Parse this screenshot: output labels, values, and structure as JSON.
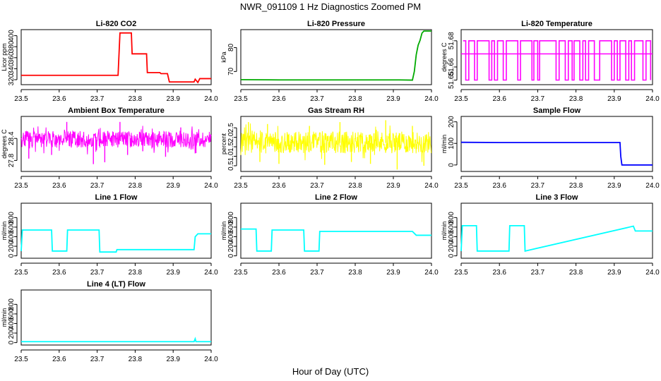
{
  "title": "NWR_091109  1 Hz Diagnostics Zoomed PM",
  "xlabel": "Hour of Day (UTC)",
  "chart_data": [
    {
      "type": "line",
      "title": "Li-820 CO2",
      "ylabel": "Licor ppm",
      "color": "#ff0000",
      "xlim": [
        23.5,
        24.0
      ],
      "xticks": [
        "23.5",
        "23.6",
        "23.7",
        "23.8",
        "23.9",
        "24.0"
      ],
      "ylim": [
        311,
        411
      ],
      "yticks": [
        320,
        340,
        360,
        380,
        400
      ],
      "x": [
        23.5,
        23.6,
        23.7,
        23.705,
        23.74,
        23.748,
        23.755,
        23.76,
        23.79,
        23.792,
        23.83,
        23.832,
        23.865,
        23.868,
        23.885,
        23.89,
        23.93,
        23.955,
        23.958,
        23.965,
        23.97,
        24.0
      ],
      "y": [
        328,
        328,
        328,
        328,
        328,
        328,
        328,
        405,
        405,
        367,
        367,
        333,
        333,
        331,
        331,
        316,
        316,
        316,
        321,
        315,
        322,
        322
      ]
    },
    {
      "type": "line",
      "title": "Li-820 Pressure",
      "ylabel": "kPa",
      "color": "#00aa00",
      "xlim": [
        23.5,
        24.0
      ],
      "xticks": [
        "23.5",
        "23.6",
        "23.7",
        "23.8",
        "23.9",
        "24.0"
      ],
      "ylim": [
        64.5,
        87.5
      ],
      "yticks": [
        70,
        80
      ],
      "x": [
        23.5,
        23.6,
        23.7,
        23.8,
        23.9,
        23.915,
        23.95,
        23.955,
        23.96,
        23.965,
        23.97,
        23.975,
        23.98,
        24.0
      ],
      "y": [
        66.6,
        66.5,
        66.5,
        66.5,
        66.5,
        66.5,
        66.4,
        70,
        77,
        81,
        83,
        86,
        86.9,
        86.9
      ]
    },
    {
      "type": "line",
      "title": "Li-820 Temperature",
      "ylabel": "degrees C",
      "color": "#ff00ff",
      "xlim": [
        23.5,
        24.0
      ],
      "xticks": [
        "23.5",
        "23.6",
        "23.7",
        "23.8",
        "23.9",
        "24.0"
      ],
      "ylim": [
        51.6465,
        51.6885
      ],
      "yticks": [
        "51.65",
        "51.66",
        "51.68"
      ],
      "levels": [
        51.65,
        51.67,
        51.68
      ],
      "x": [
        23.505,
        23.512,
        23.52,
        23.528,
        23.535,
        23.542,
        23.55,
        23.558,
        23.565,
        23.573,
        23.58,
        23.587,
        23.595,
        23.602,
        23.61,
        23.618,
        23.625,
        23.633,
        23.64,
        23.648,
        23.655,
        23.662,
        23.67,
        23.678,
        23.685,
        23.69,
        23.7,
        23.705,
        23.715,
        23.72,
        23.732,
        23.74,
        23.748,
        23.756,
        23.765,
        23.772,
        23.78,
        23.79,
        23.795,
        23.805,
        23.81,
        23.818,
        23.825,
        23.833,
        23.84,
        23.848,
        23.855,
        23.862,
        23.87,
        23.878,
        23.885,
        23.893,
        23.9,
        23.908,
        23.915,
        23.923,
        23.93,
        23.938,
        23.945,
        23.953,
        23.96,
        23.968,
        23.975,
        23.983,
        23.99,
        23.995
      ],
      "y": [
        51.68,
        51.65,
        51.68,
        51.68,
        51.65,
        51.68,
        51.68,
        51.68,
        51.68,
        51.65,
        51.68,
        51.65,
        51.68,
        51.68,
        51.65,
        51.68,
        51.68,
        51.68,
        51.68,
        51.65,
        51.68,
        51.68,
        51.68,
        51.68,
        51.65,
        51.68,
        51.65,
        51.68,
        51.68,
        51.68,
        51.68,
        51.68,
        51.65,
        51.68,
        51.68,
        51.65,
        51.68,
        51.65,
        51.68,
        51.68,
        51.65,
        51.68,
        51.65,
        51.68,
        51.68,
        51.65,
        51.65,
        51.68,
        51.68,
        51.68,
        51.68,
        51.65,
        51.68,
        51.65,
        51.68,
        51.68,
        51.65,
        51.68,
        51.65,
        51.68,
        51.68,
        51.68,
        51.65,
        51.68,
        51.68,
        51.65
      ]
    },
    {
      "type": "line",
      "title": "Ambient Box Temperature",
      "ylabel": "degrees C",
      "color": "#ff00ff",
      "xlim": [
        23.5,
        24.0
      ],
      "xticks": [
        "23.5",
        "23.6",
        "23.7",
        "23.8",
        "23.9",
        "24.0"
      ],
      "ylim": [
        27.5,
        29.0
      ],
      "yticks": [
        "27.8",
        "28.4"
      ],
      "center": 28.35,
      "band": [
        28.15,
        28.6
      ],
      "extremes": [
        [
          23.52,
          27.85
        ],
        [
          23.58,
          27.95
        ],
        [
          23.62,
          28.85
        ],
        [
          23.69,
          27.7
        ],
        [
          23.72,
          27.75
        ],
        [
          23.76,
          28.85
        ],
        [
          23.78,
          27.95
        ],
        [
          23.82,
          28.05
        ],
        [
          23.88,
          27.9
        ],
        [
          23.92,
          28.7
        ],
        [
          23.96,
          28.0
        ]
      ]
    },
    {
      "type": "line",
      "title": "Gas Stream RH",
      "ylabel": "percent",
      "color": "#ffff00",
      "xlim": [
        23.5,
        24.0
      ],
      "xticks": [
        "23.5",
        "23.6",
        "23.7",
        "23.8",
        "23.9",
        "24.0"
      ],
      "ylim": [
        0.2,
        3.1
      ],
      "yticks": [
        "0.5",
        "1.0",
        "1.5",
        "2.0",
        "2.5"
      ],
      "center": 1.7,
      "band": [
        1.15,
        2.3
      ],
      "extremes": [
        [
          23.52,
          2.8
        ],
        [
          23.55,
          0.7
        ],
        [
          23.57,
          2.7
        ],
        [
          23.6,
          0.6
        ],
        [
          23.68,
          2.6
        ],
        [
          23.72,
          0.55
        ],
        [
          23.76,
          2.8
        ],
        [
          23.79,
          0.7
        ],
        [
          23.84,
          0.6
        ],
        [
          23.88,
          2.9
        ],
        [
          23.91,
          0.3
        ],
        [
          23.95,
          2.6
        ],
        [
          23.98,
          0.5
        ]
      ]
    },
    {
      "type": "line",
      "title": "Sample Flow",
      "ylabel": "ml/min",
      "color": "#0000ff",
      "xlim": [
        23.5,
        24.0
      ],
      "xticks": [
        "23.5",
        "23.6",
        "23.7",
        "23.8",
        "23.9",
        "24.0"
      ],
      "ylim": [
        -30,
        225
      ],
      "yticks": [
        0,
        100,
        200
      ],
      "x": [
        23.5,
        23.6,
        23.7,
        23.8,
        23.915,
        23.917,
        23.92,
        24.0
      ],
      "y": [
        105,
        104,
        104,
        104,
        104,
        40,
        0,
        0
      ]
    },
    {
      "type": "line",
      "title": "Line 1 Flow",
      "ylabel": "ml/min",
      "color": "#00ffff",
      "xlim": [
        23.5,
        24.0
      ],
      "xticks": [
        "23.5",
        "23.6",
        "23.7",
        "23.8",
        "23.9",
        "24.0"
      ],
      "ylim": [
        -50,
        1100
      ],
      "yticks": [
        0,
        200,
        400,
        600,
        800
      ],
      "x": [
        23.5,
        23.503,
        23.58,
        23.582,
        23.62,
        23.622,
        23.705,
        23.707,
        23.75,
        23.752,
        23.955,
        23.958,
        23.965,
        24.0
      ],
      "y": [
        100,
        540,
        540,
        100,
        100,
        540,
        540,
        80,
        80,
        130,
        130,
        400,
        460,
        460
      ]
    },
    {
      "type": "line",
      "title": "Line 2 Flow",
      "ylabel": "ml/min",
      "color": "#00ffff",
      "xlim": [
        23.5,
        24.0
      ],
      "xticks": [
        "23.5",
        "23.6",
        "23.7",
        "23.8",
        "23.9",
        "24.0"
      ],
      "ylim": [
        -50,
        1100
      ],
      "yticks": [
        0,
        200,
        400,
        600,
        800
      ],
      "x": [
        23.5,
        23.54,
        23.542,
        23.58,
        23.582,
        23.665,
        23.667,
        23.705,
        23.707,
        23.95,
        23.96,
        24.0
      ],
      "y": [
        560,
        560,
        100,
        100,
        540,
        540,
        100,
        100,
        510,
        510,
        430,
        430
      ]
    },
    {
      "type": "line",
      "title": "Line 3 Flow",
      "ylabel": "ml/min",
      "color": "#00ffff",
      "xlim": [
        23.5,
        24.0
      ],
      "xticks": [
        "23.5",
        "23.6",
        "23.7",
        "23.8",
        "23.9",
        "24.0"
      ],
      "ylim": [
        -50,
        1100
      ],
      "yticks": [
        0,
        200,
        400,
        600,
        800
      ],
      "x": [
        23.5,
        23.503,
        23.54,
        23.542,
        23.625,
        23.627,
        23.665,
        23.667,
        23.95,
        23.955,
        24.0
      ],
      "y": [
        100,
        630,
        630,
        100,
        100,
        630,
        630,
        100,
        620,
        520,
        520
      ]
    },
    {
      "type": "line",
      "title": "Line 4 (LT) Flow",
      "ylabel": "ml/min",
      "color": "#00ffff",
      "xlim": [
        23.5,
        24.0
      ],
      "xticks": [
        "23.5",
        "23.6",
        "23.7",
        "23.8",
        "23.9",
        "24.0"
      ],
      "ylim": [
        -50,
        1100
      ],
      "yticks": [
        0,
        200,
        400,
        600,
        800
      ],
      "x": [
        23.5,
        23.6,
        23.7,
        23.8,
        23.9,
        23.955,
        23.958,
        23.96,
        24.0
      ],
      "y": [
        20,
        20,
        20,
        20,
        20,
        20,
        80,
        20,
        20
      ]
    }
  ]
}
